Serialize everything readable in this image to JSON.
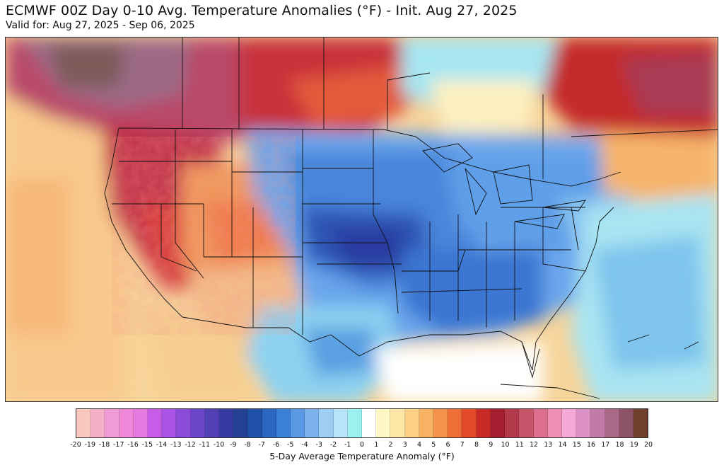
{
  "header": {
    "title": "ECMWF 00Z Day 0-10 Avg. Temperature Anomalies (°F) - Init. Aug 27, 2025",
    "subtitle": "Valid for: Aug 27, 2025 - Sep 06, 2025"
  },
  "colorbar": {
    "label": "5-Day Average Temperature Anomaly (°F)",
    "tick_labels": [
      "-20",
      "-19",
      "-18",
      "-17",
      "-16",
      "-15",
      "-14",
      "-13",
      "-12",
      "-11",
      "-10",
      "-9",
      "-8",
      "-7",
      "-6",
      "-5",
      "-4",
      "-3",
      "-2",
      "-1",
      "0",
      "1",
      "2",
      "3",
      "4",
      "5",
      "6",
      "7",
      "8",
      "9",
      "10",
      "11",
      "12",
      "13",
      "14",
      "15",
      "16",
      "17",
      "18",
      "19",
      "20"
    ],
    "colors": [
      "#f9c9c0",
      "#f4b0c8",
      "#f19bd6",
      "#ef88d8",
      "#e47ae0",
      "#c65ce8",
      "#a852e6",
      "#8a4cd8",
      "#6c46c8",
      "#5240b6",
      "#383aa4",
      "#234093",
      "#1f50a8",
      "#2a66c2",
      "#3b80d6",
      "#5a9ae4",
      "#7cb3ee",
      "#9ecdf4",
      "#b8e3f8",
      "#9cf0f0",
      "#ffffff",
      "#fff8c4",
      "#fde7a6",
      "#fbcf84",
      "#f7b363",
      "#f59148",
      "#ef6e36",
      "#e2482a",
      "#c82a27",
      "#a31e2e",
      "#b23a4a",
      "#c8546a",
      "#dc6e8e",
      "#ee8eb4",
      "#f4a8d8",
      "#dc92c6",
      "#c07ca6",
      "#a86886",
      "#8c5466",
      "#70402c"
    ]
  },
  "map": {
    "background_colors": {
      "ocean_pacific": "#f6c88a",
      "ocean_atlantic": "#bfe9f6",
      "gulf": "#ffffff",
      "canada_west": "#c0405a",
      "canada_east": "#d23a3a",
      "central_us": "#4f8ee0",
      "plains_core": "#2f4fb0"
    }
  }
}
